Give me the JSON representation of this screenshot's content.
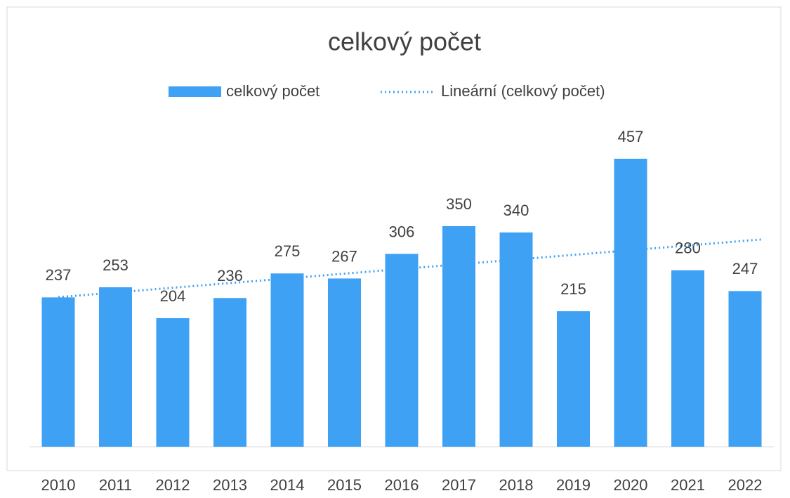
{
  "chart_data": {
    "type": "bar",
    "title": "celkový počet",
    "categories": [
      "2010",
      "2011",
      "2012",
      "2013",
      "2014",
      "2015",
      "2016",
      "2017",
      "2018",
      "2019",
      "2020",
      "2021",
      "2022"
    ],
    "series": [
      {
        "name": "celkový počet",
        "color": "#3ea1f4",
        "values": [
          237,
          253,
          204,
          236,
          275,
          267,
          306,
          350,
          340,
          215,
          457,
          280,
          247
        ]
      }
    ],
    "trendline": {
      "name": "Lineární (celkový počet)",
      "color": "#3ea1f4"
    },
    "legend": "top"
  }
}
